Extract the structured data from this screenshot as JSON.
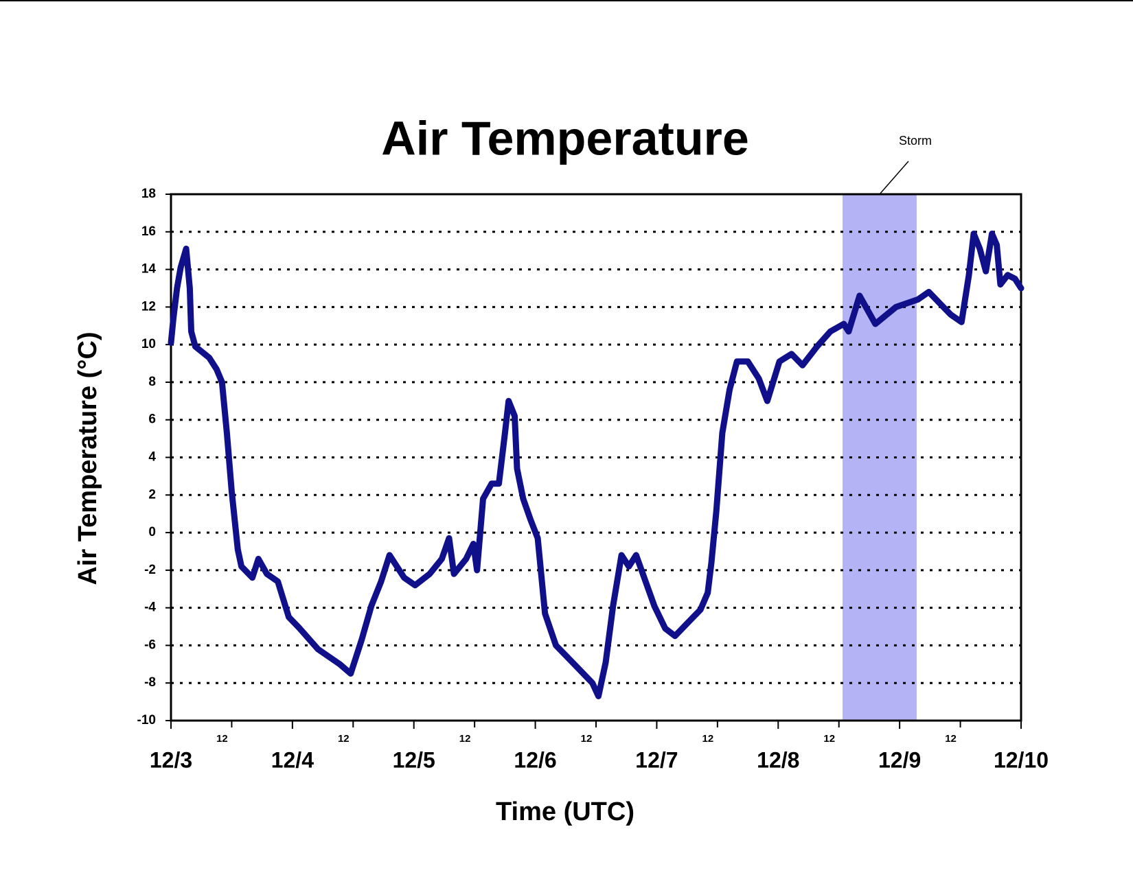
{
  "chart_data": {
    "type": "line",
    "title": "Air Temperature",
    "xlabel": "Time (UTC)",
    "ylabel": "Air Temperature (°C)",
    "x": [
      0,
      0.02,
      0.05,
      0.08,
      0.125,
      0.155,
      0.167,
      0.2,
      0.315,
      0.375,
      0.42,
      0.46,
      0.5,
      0.55,
      0.58,
      0.67,
      0.72,
      0.79,
      0.88,
      0.97,
      1.06,
      1.21,
      1.39,
      1.48,
      1.57,
      1.65,
      1.73,
      1.8,
      1.92,
      2.01,
      2.13,
      2.23,
      2.29,
      2.33,
      2.43,
      2.49,
      2.52,
      2.57,
      2.64,
      2.7,
      2.75,
      2.78,
      2.83,
      2.85,
      2.9,
      2.96,
      3.02,
      3.08,
      3.17,
      3.35,
      3.47,
      3.52,
      3.58,
      3.64,
      3.71,
      3.77,
      3.83,
      3.98,
      4.07,
      4.15,
      4.27,
      4.36,
      4.42,
      4.45,
      4.49,
      4.54,
      4.6,
      4.66,
      4.75,
      4.84,
      4.91,
      5.01,
      5.11,
      5.2,
      5.32,
      5.43,
      5.54,
      5.58,
      5.67,
      5.8,
      5.97,
      6.15,
      6.24,
      6.33,
      6.42,
      6.51,
      6.57,
      6.61,
      6.66,
      6.71,
      6.76,
      6.8,
      6.83,
      6.89,
      6.95,
      7
    ],
    "values": [
      10.1,
      11.4,
      13,
      14.1,
      15.1,
      13,
      10.7,
      9.9,
      9.3,
      8.7,
      8,
      5.3,
      2.2,
      -0.9,
      -1.8,
      -2.4,
      -1.4,
      -2.2,
      -2.6,
      -4.5,
      -5.1,
      -6.2,
      -7,
      -7.5,
      -5.7,
      -3.9,
      -2.6,
      -1.2,
      -2.4,
      -2.8,
      -2.2,
      -1.4,
      -0.3,
      -2.2,
      -1.4,
      -0.6,
      -2,
      1.8,
      2.6,
      2.6,
      5.3,
      7,
      6.2,
      3.4,
      1.8,
      0.7,
      -0.3,
      -4.3,
      -6,
      -7.2,
      -8,
      -8.7,
      -6.9,
      -3.9,
      -1.2,
      -1.8,
      -1.2,
      -3.9,
      -5.1,
      -5.5,
      -4.7,
      -4.1,
      -3.2,
      -1.6,
      1.1,
      5.3,
      7.6,
      9.1,
      9.1,
      8.2,
      7,
      9.1,
      9.5,
      8.9,
      9.9,
      10.7,
      11.1,
      10.7,
      12.6,
      11.1,
      12,
      12.4,
      12.8,
      12.2,
      11.6,
      11.2,
      13.7,
      15.9,
      15.1,
      13.9,
      15.9,
      15.3,
      13.2,
      13.7,
      13.5,
      13
    ],
    "color": "#10108a",
    "xlim": [
      0,
      7
    ],
    "xticks": [
      {
        "value": 0,
        "label": "12/3"
      },
      {
        "value": 1,
        "label": "12/4"
      },
      {
        "value": 2,
        "label": "12/5"
      },
      {
        "value": 3,
        "label": "12/6"
      },
      {
        "value": 4,
        "label": "12/7"
      },
      {
        "value": 5,
        "label": "12/8"
      },
      {
        "value": 6,
        "label": "12/9"
      },
      {
        "value": 7,
        "label": "12/10"
      }
    ],
    "xminorticks": [
      {
        "value": 0.5,
        "label": "12"
      },
      {
        "value": 1.5,
        "label": "12"
      },
      {
        "value": 2.5,
        "label": "12"
      },
      {
        "value": 3.5,
        "label": "12"
      },
      {
        "value": 4.5,
        "label": "12"
      },
      {
        "value": 5.5,
        "label": "12"
      },
      {
        "value": 6.5,
        "label": "12"
      }
    ],
    "ylim": [
      -10,
      18
    ],
    "yticks": [
      -10,
      -8,
      -6,
      -4,
      -2,
      0,
      2,
      4,
      6,
      8,
      10,
      12,
      14,
      16,
      18
    ],
    "grid": true,
    "shaded_regions": [
      {
        "label": "Storm",
        "x": [
          5.53,
          6.14
        ],
        "color": "#b3b3f5"
      }
    ]
  }
}
